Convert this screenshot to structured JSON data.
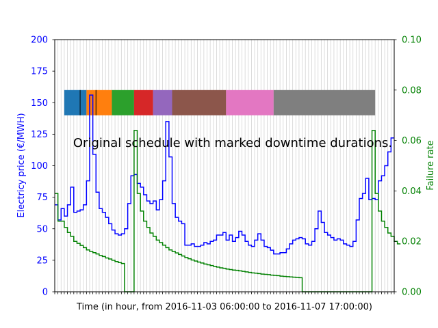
{
  "chart_data": {
    "type": "line",
    "title": "Original schedule with marked downtime durations.",
    "xlabel": "Time (in hour, from 2016-11-03 06:00:00 to 2016-11-07 17:00:00)",
    "ylabel_left": "Electricy price (€/MWH)",
    "ylabel_right": "Failure rate",
    "xlim": [
      0,
      107
    ],
    "ylim_left": [
      0,
      200
    ],
    "ylim_right": [
      0,
      0.1
    ],
    "yticks_left": [
      "0",
      "25",
      "50",
      "75",
      "100",
      "125",
      "150",
      "175",
      "200"
    ],
    "yticks_right": [
      "0.00",
      "0.02",
      "0.04",
      "0.06",
      "0.08",
      "0.10"
    ],
    "grid": "vertical",
    "step_style": "post",
    "colors": {
      "price": "#0000ff",
      "failure": "#008000",
      "left_axis_text": "#0000ff",
      "right_axis_text": "#008000",
      "grid": "#d3d3d3"
    },
    "series": [
      {
        "role": "price",
        "axis": "left",
        "values": [
          69,
          57,
          66,
          60,
          69,
          83,
          63,
          64,
          65,
          69,
          88,
          156,
          109,
          79,
          66,
          63,
          59,
          54,
          49,
          46,
          45,
          46,
          50,
          70,
          92,
          93,
          86,
          83,
          77,
          72,
          70,
          72,
          65,
          73,
          88,
          135,
          107,
          70,
          59,
          56,
          54,
          37,
          37,
          38,
          36,
          36,
          37,
          39,
          38,
          40,
          41,
          45,
          45,
          47,
          41,
          45,
          40,
          43,
          48,
          45,
          40,
          37,
          36,
          41,
          46,
          41,
          36,
          35,
          33,
          30,
          30,
          31,
          31,
          34,
          38,
          41,
          42,
          43,
          42,
          38,
          37,
          40,
          50,
          64,
          55,
          47,
          45,
          43,
          41,
          42,
          41,
          38,
          37,
          36,
          40,
          57,
          74,
          78,
          90,
          73,
          74,
          73,
          88,
          92,
          100,
          111,
          122
        ]
      },
      {
        "role": "failure",
        "axis": "right",
        "values": [
          0.039,
          0.028,
          0.028,
          0.0255,
          0.0235,
          0.022,
          0.02,
          0.0192,
          0.0184,
          0.0175,
          0.0166,
          0.016,
          0.0155,
          0.015,
          0.0144,
          0.014,
          0.0134,
          0.013,
          0.0125,
          0.012,
          0.0116,
          0.0112,
          0,
          0,
          0,
          0.064,
          0.039,
          0.032,
          0.028,
          0.0255,
          0.0233,
          0.022,
          0.0205,
          0.0195,
          0.0185,
          0.0175,
          0.0166,
          0.016,
          0.0154,
          0.0148,
          0.0142,
          0.0136,
          0.0131,
          0.0126,
          0.0122,
          0.0118,
          0.0114,
          0.011,
          0.0107,
          0.0104,
          0.0101,
          0.0098,
          0.0095,
          0.0093,
          0.009,
          0.0088,
          0.0086,
          0.0085,
          0.0083,
          0.0081,
          0.0079,
          0.0077,
          0.0075,
          0.0074,
          0.0072,
          0.007,
          0.0069,
          0.0068,
          0.0066,
          0.0065,
          0.0064,
          0.0062,
          0.0061,
          0.006,
          0.0059,
          0.0058,
          0.0057,
          0.0056,
          0,
          0,
          0,
          0,
          0,
          0,
          0,
          0,
          0,
          0,
          0,
          0,
          0,
          0,
          0,
          0,
          0,
          0,
          0,
          0,
          0,
          0,
          0.064,
          0.039,
          0.032,
          0.028,
          0.0255,
          0.0233,
          0.022,
          0.02,
          0.019
        ]
      }
    ],
    "schedule_blocks": [
      {
        "start": 3,
        "end": 10,
        "color": "#1f77b4",
        "dividers": [
          8
        ]
      },
      {
        "start": 10,
        "end": 18,
        "color": "#ff7f0e",
        "dividers": [
          13
        ]
      },
      {
        "start": 18,
        "end": 25,
        "color": "#2ca02c",
        "dividers": []
      },
      {
        "start": 25,
        "end": 31,
        "color": "#d62728",
        "dividers": []
      },
      {
        "start": 31,
        "end": 37,
        "color": "#9467bd",
        "dividers": []
      },
      {
        "start": 37,
        "end": 54,
        "color": "#8c564b",
        "dividers": []
      },
      {
        "start": 54,
        "end": 69,
        "color": "#e377c2",
        "dividers": []
      },
      {
        "start": 69,
        "end": 101,
        "color": "#7f7f7f",
        "dividers": []
      }
    ],
    "schedule_band": {
      "ymin": 140,
      "ymax": 160
    }
  }
}
